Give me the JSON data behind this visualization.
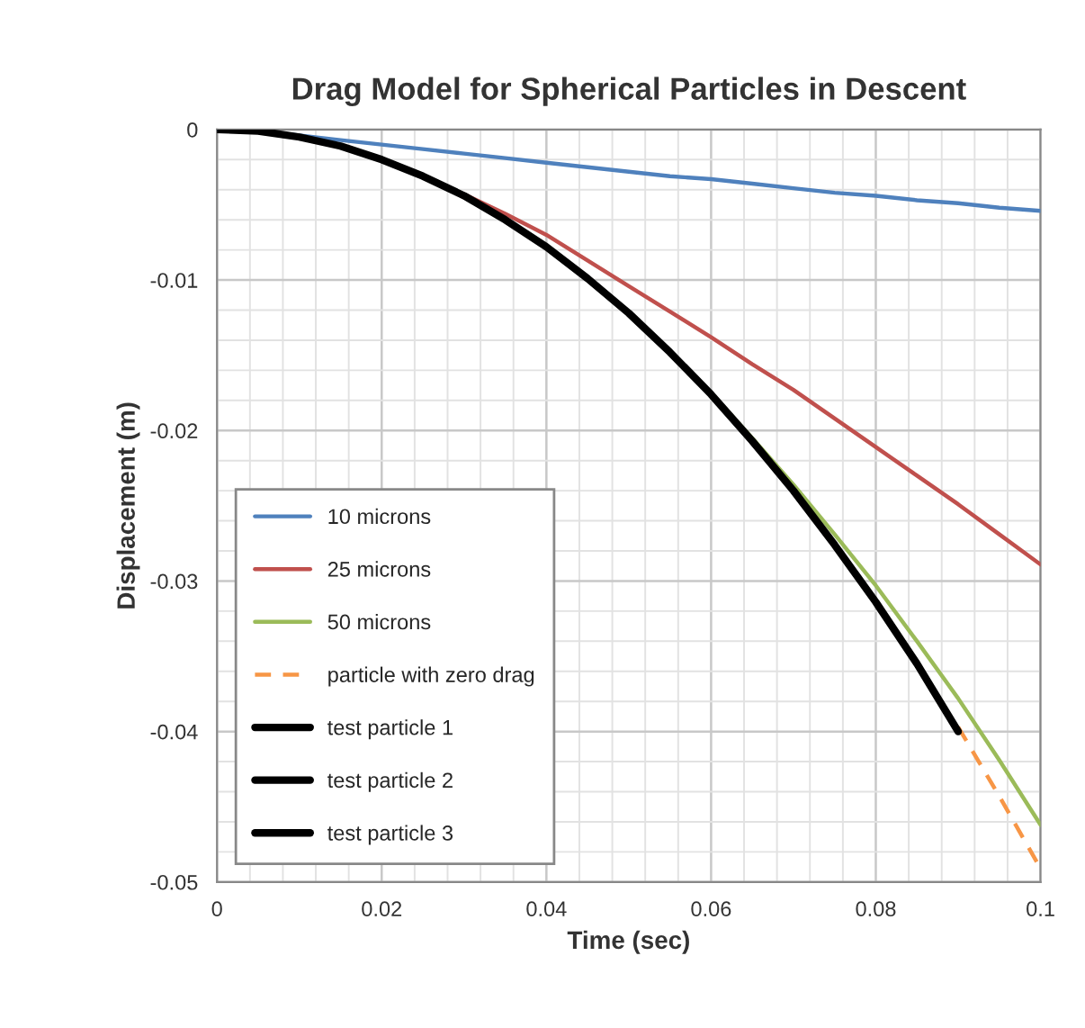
{
  "chart_data": {
    "type": "line",
    "title": "Drag Model for Spherical Particles in Descent",
    "xlabel": "Time (sec)",
    "ylabel": "Displacement (m)",
    "x": [
      0,
      0.005,
      0.01,
      0.015,
      0.02,
      0.025,
      0.03,
      0.035,
      0.04,
      0.045,
      0.05,
      0.055,
      0.06,
      0.065,
      0.07,
      0.075,
      0.08,
      0.085,
      0.09,
      0.095,
      0.1
    ],
    "series": [
      {
        "name": "10 microns",
        "color": "#4f81bd",
        "values": [
          0,
          -0.0001,
          -0.0004,
          -0.0007,
          -0.001,
          -0.0013,
          -0.0016,
          -0.0019,
          -0.0022,
          -0.0025,
          -0.0028,
          -0.0031,
          -0.0033,
          -0.0036,
          -0.0039,
          -0.0042,
          -0.0044,
          -0.0047,
          -0.0049,
          -0.0052,
          -0.0054
        ]
      },
      {
        "name": "25 microns",
        "color": "#c0504d",
        "values": [
          null,
          null,
          null,
          null,
          null,
          null,
          -0.0043,
          -0.0056,
          -0.007,
          -0.0087,
          -0.0104,
          -0.0121,
          -0.0138,
          -0.0156,
          -0.0173,
          -0.0192,
          -0.0211,
          -0.023,
          -0.0249,
          -0.0269,
          -0.0289
        ]
      },
      {
        "name": "50 microns",
        "color": "#9bbb59",
        "values": [
          null,
          null,
          null,
          null,
          null,
          null,
          null,
          null,
          null,
          null,
          null,
          -0.0147,
          -0.0175,
          -0.0205,
          -0.0236,
          -0.0269,
          -0.0303,
          -0.034,
          -0.0378,
          -0.0419,
          -0.0462
        ]
      },
      {
        "name": "particle with zero drag",
        "color": "#f79646",
        "line_style": "dashed",
        "values": [
          null,
          null,
          null,
          null,
          null,
          null,
          null,
          null,
          null,
          null,
          null,
          null,
          null,
          null,
          null,
          null,
          null,
          null,
          -0.0397,
          -0.0443,
          -0.0491
        ]
      },
      {
        "name": "test particle 1",
        "color": "#000000",
        "values": [
          0,
          -0.0001,
          -0.0005,
          -0.0011,
          -0.002,
          -0.0031,
          -0.0044,
          -0.006,
          -0.0078,
          -0.0099,
          -0.0122,
          -0.0148,
          -0.0176,
          -0.0207,
          -0.024,
          -0.0276,
          -0.0314,
          -0.0355,
          -0.04,
          null,
          null
        ]
      },
      {
        "name": "test particle 2",
        "color": "#000000",
        "values": [
          null,
          null,
          null,
          null,
          null,
          null,
          null,
          null,
          null,
          null,
          null,
          null,
          null,
          null,
          null,
          null,
          null,
          null,
          null,
          null,
          null
        ]
      },
      {
        "name": "test particle 3",
        "color": "#000000",
        "values": [
          null,
          null,
          null,
          null,
          null,
          null,
          null,
          null,
          null,
          null,
          null,
          null,
          null,
          null,
          null,
          null,
          null,
          null,
          null,
          null,
          null
        ]
      }
    ],
    "xlim": [
      0,
      0.1
    ],
    "xticks": [
      0,
      0.02,
      0.04,
      0.06,
      0.08,
      0.1
    ],
    "ylim": [
      -0.05,
      0
    ],
    "yticks": [
      -0.05,
      -0.04,
      -0.03,
      -0.02,
      -0.01,
      0
    ],
    "grid": true,
    "legend": "bottom left",
    "marker": "none",
    "line_style": "solid"
  }
}
